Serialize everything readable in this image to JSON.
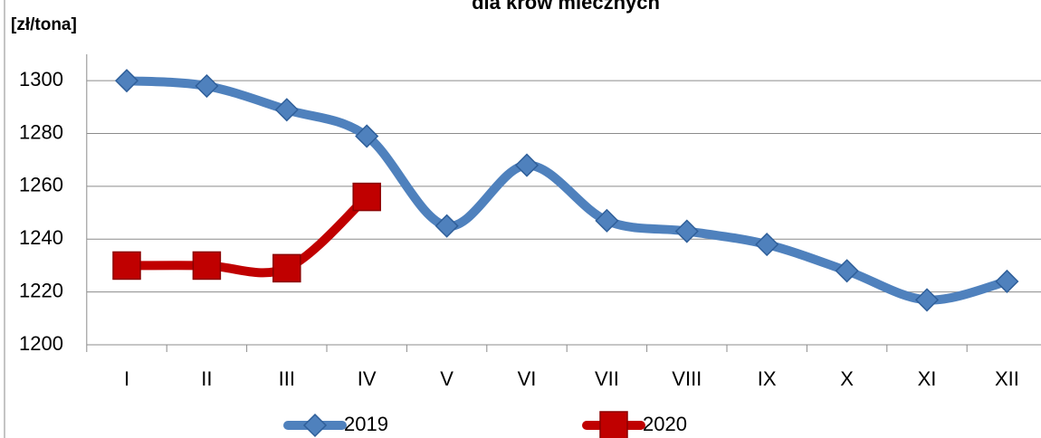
{
  "chart_data": {
    "type": "line",
    "title": "dla krów mlecznych",
    "y_label": "[zł/tona]",
    "categories": [
      "I",
      "II",
      "III",
      "IV",
      "V",
      "VI",
      "VII",
      "VIII",
      "IX",
      "X",
      "XI",
      "XII"
    ],
    "series": [
      {
        "name": "2019",
        "color": "#4f81bd",
        "marker": "diamond",
        "values": [
          1300,
          1298,
          1289,
          1279,
          1245,
          1268,
          1247,
          1243,
          1238,
          1228,
          1217,
          1224
        ]
      },
      {
        "name": "2020",
        "color": "#c00000",
        "marker": "square",
        "values": [
          1230,
          1230,
          1229,
          1256,
          null,
          null,
          null,
          null,
          null,
          null,
          null,
          null
        ]
      }
    ],
    "ylim": [
      1200,
      1310
    ],
    "yticks": [
      1200,
      1220,
      1240,
      1260,
      1280,
      1300
    ],
    "grid": true,
    "legend": "bottom"
  }
}
